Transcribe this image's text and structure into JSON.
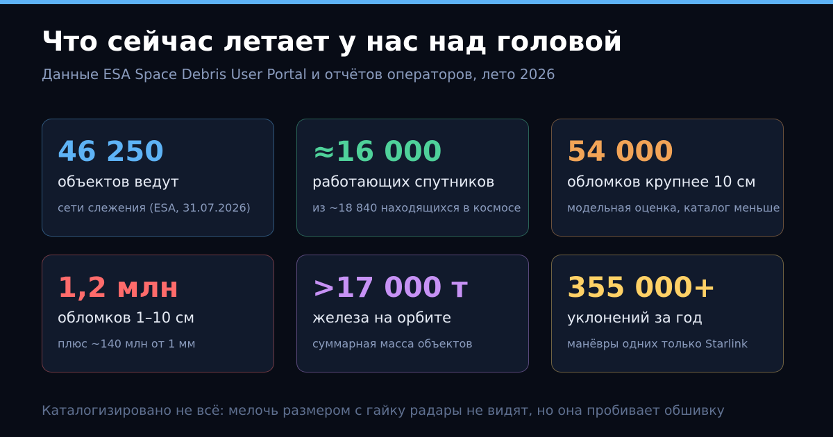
{
  "header": {
    "title": "Что сейчас летает у нас над головой",
    "subtitle": "Данные ESA Space Debris User Portal и отчётов операторов, лето 2026"
  },
  "cards": [
    {
      "value": "46 250",
      "label": "объектов ведут",
      "note": "сети слежения (ESA, 31.07.2026)",
      "color": "#5eb3f6"
    },
    {
      "value": "≈16 000",
      "label": "работающих спутников",
      "note": "из ~18 840 находящихся в космосе",
      "color": "#4fd19a"
    },
    {
      "value": "54 000",
      "label": "обломков крупнее 10 см",
      "note": "модельная оценка, каталог меньше",
      "color": "#f2a457"
    },
    {
      "value": "1,2 млн",
      "label": "обломков 1–10 см",
      "note": "плюс ~140 млн от 1 мм",
      "color": "#ff6b6b"
    },
    {
      "value": ">17 000 т",
      "label": "железа на орбите",
      "note": "суммарная масса объектов",
      "color": "#c792f5"
    },
    {
      "value": "355 000+",
      "label": "уклонений за год",
      "note": "манёвры одних только Starlink",
      "color": "#ffd166"
    }
  ],
  "footer": "Каталогизировано не всё: мелочь размером с гайку радары не видят, но она пробивает обшивку"
}
